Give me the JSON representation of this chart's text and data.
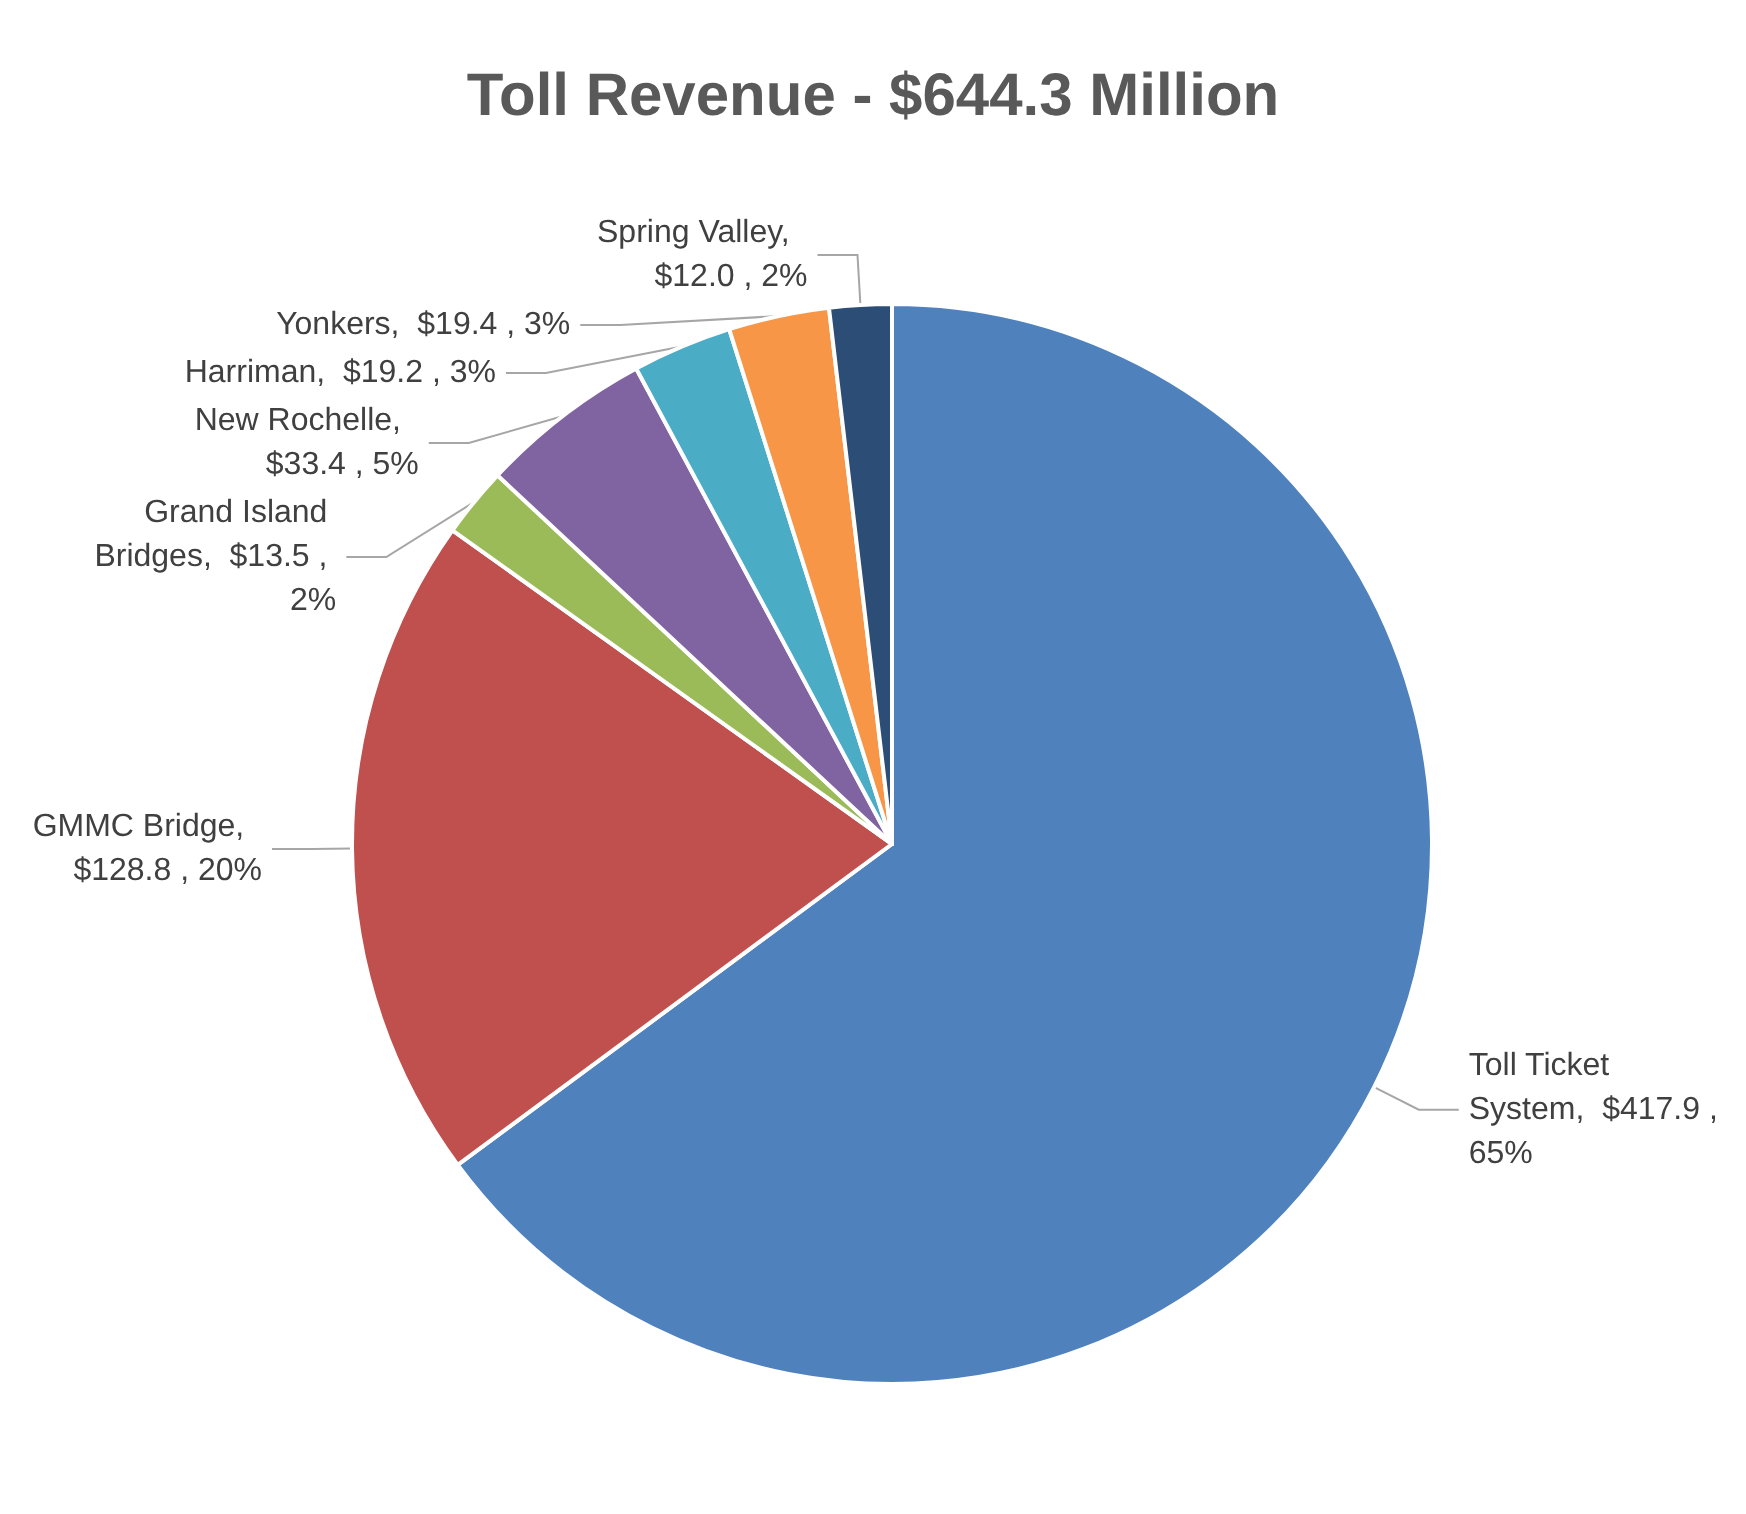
{
  "chart_data": {
    "type": "pie",
    "title": "Toll Revenue - $644.3 Million",
    "categories": [
      "Toll Ticket System",
      "GMMC Bridge",
      "Grand Island Bridges",
      "New Rochelle",
      "Harriman",
      "Yonkers",
      "Spring Valley"
    ],
    "values": [
      417.9,
      128.8,
      13.5,
      33.4,
      19.2,
      19.4,
      12.0
    ],
    "value_labels": [
      ",  $417.9 , 65%",
      ",  $128.8 , 20%",
      ",  $13.5 , 2%",
      ",  $33.4 , 5%",
      ",  $19.2 , 3%",
      ",  $19.4 , 3%",
      ",  $12.0 , 2%"
    ],
    "colors": [
      "#4f81bd",
      "#c0504d",
      "#9bbb59",
      "#8064a2",
      "#4bacc6",
      "#f79646",
      "#2c4d75"
    ],
    "legend": false
  }
}
